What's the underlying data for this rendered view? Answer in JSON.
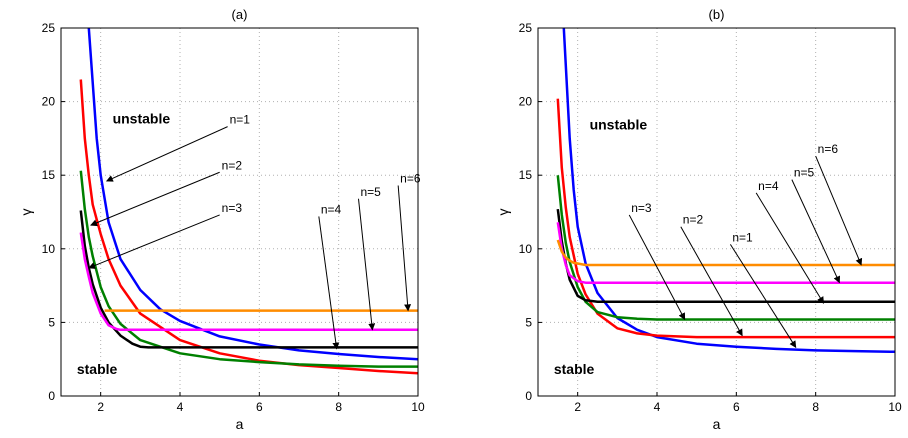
{
  "chart_data": [
    {
      "type": "line",
      "title": "(a)",
      "xlabel": "a",
      "ylabel": "γ",
      "xlim": [
        1,
        10
      ],
      "ylim": [
        0,
        25
      ],
      "xticks": [
        "2",
        "4",
        "6",
        "8",
        "10"
      ],
      "yticks": [
        "0",
        "5",
        "10",
        "15",
        "20",
        "25"
      ],
      "grid": true,
      "region_labels": [
        "unstable",
        "stable"
      ],
      "series": [
        {
          "name": "n=1",
          "color": "#0000ff",
          "x": [
            1.5,
            1.7,
            1.9,
            2.0,
            2.2,
            2.5,
            3,
            3.5,
            4,
            5,
            6,
            7,
            8,
            9,
            10
          ],
          "y": [
            40,
            25,
            17.5,
            15,
            11.8,
            9.3,
            7.2,
            5.9,
            5.1,
            4.05,
            3.5,
            3.1,
            2.85,
            2.65,
            2.5
          ]
        },
        {
          "name": "n=2",
          "color": "#ff0000",
          "x": [
            1.5,
            1.6,
            1.7,
            1.8,
            1.9,
            2.0,
            2.2,
            2.5,
            3,
            4,
            5,
            6,
            7,
            8,
            9,
            10
          ],
          "y": [
            21.5,
            17.5,
            15,
            13,
            12,
            11,
            9.3,
            7.5,
            5.6,
            3.8,
            2.9,
            2.4,
            2.1,
            1.9,
            1.7,
            1.55
          ]
        },
        {
          "name": "n=3",
          "color": "#008000",
          "x": [
            1.5,
            1.6,
            1.7,
            1.8,
            2.0,
            2.2,
            2.5,
            3,
            4,
            5,
            6,
            7,
            8,
            9,
            10
          ],
          "y": [
            15.3,
            12.7,
            10.8,
            9.5,
            7.4,
            6.1,
            4.9,
            3.8,
            2.9,
            2.5,
            2.3,
            2.15,
            2.05,
            2.0,
            2.0
          ]
        },
        {
          "name": "n=4",
          "color": "#000000",
          "x": [
            1.5,
            1.6,
            1.7,
            1.8,
            2.0,
            2.2,
            2.5,
            2.8,
            3.0,
            3.2,
            10
          ],
          "y": [
            12.6,
            10.2,
            8.7,
            7.6,
            6.0,
            5.0,
            4.1,
            3.55,
            3.35,
            3.3,
            3.3
          ]
        },
        {
          "name": "n=5",
          "color": "#ff00ff",
          "x": [
            1.5,
            1.6,
            1.7,
            1.8,
            2.0,
            2.2,
            2.4,
            2.5,
            10
          ],
          "y": [
            11.1,
            9.3,
            8.1,
            7.0,
            5.6,
            4.8,
            4.55,
            4.5,
            4.5
          ]
        },
        {
          "name": "n=6",
          "color": "#ff8c00",
          "x": [
            2.1,
            10
          ],
          "y": [
            5.8,
            5.8
          ]
        }
      ],
      "annotations": [
        {
          "text": "n=1",
          "label_at": [
            5.2,
            18.3
          ],
          "arrow_to": [
            2.15,
            14.6
          ]
        },
        {
          "text": "n=2",
          "label_at": [
            5.0,
            15.2
          ],
          "arrow_to": [
            1.75,
            11.6
          ]
        },
        {
          "text": "n=3",
          "label_at": [
            5.0,
            12.3
          ],
          "arrow_to": [
            1.7,
            8.7
          ]
        },
        {
          "text": "n=4",
          "label_at": [
            7.5,
            12.2
          ],
          "arrow_to": [
            7.95,
            3.2
          ]
        },
        {
          "text": "n=5",
          "label_at": [
            8.5,
            13.4
          ],
          "arrow_to": [
            8.85,
            4.5
          ]
        },
        {
          "text": "n=6",
          "label_at": [
            9.5,
            14.3
          ],
          "arrow_to": [
            9.75,
            5.8
          ]
        }
      ]
    },
    {
      "type": "line",
      "title": "(b)",
      "xlabel": "a",
      "ylabel": "γ",
      "xlim": [
        1,
        10
      ],
      "ylim": [
        0,
        25
      ],
      "xticks": [
        "2",
        "4",
        "6",
        "8",
        "10"
      ],
      "yticks": [
        "0",
        "5",
        "10",
        "15",
        "20",
        "25"
      ],
      "grid": true,
      "region_labels": [
        "unstable",
        "stable"
      ],
      "series": [
        {
          "name": "n=1",
          "color": "#0000ff",
          "x": [
            1.5,
            1.65,
            1.8,
            1.9,
            2.0,
            2.2,
            2.5,
            3,
            3.5,
            4,
            5,
            6,
            7,
            8,
            9,
            10
          ],
          "y": [
            40,
            25,
            17.5,
            14,
            11.5,
            9.0,
            7.0,
            5.3,
            4.5,
            4.0,
            3.55,
            3.35,
            3.2,
            3.1,
            3.05,
            3.0
          ]
        },
        {
          "name": "n=2",
          "color": "#ff0000",
          "x": [
            1.5,
            1.6,
            1.7,
            1.8,
            2.0,
            2.2,
            2.5,
            3,
            3.5,
            4,
            5,
            6,
            7,
            8,
            10
          ],
          "y": [
            20.2,
            15.5,
            12.8,
            10.8,
            8.3,
            6.9,
            5.6,
            4.6,
            4.25,
            4.1,
            4.0,
            4.0,
            4.0,
            4.0,
            4.0
          ]
        },
        {
          "name": "n=3",
          "color": "#008000",
          "x": [
            1.5,
            1.6,
            1.7,
            1.8,
            2.0,
            2.2,
            2.5,
            3,
            3.5,
            4,
            5,
            10
          ],
          "y": [
            15.0,
            12.3,
            10.4,
            9.1,
            7.4,
            6.4,
            5.7,
            5.35,
            5.25,
            5.2,
            5.2,
            5.2
          ]
        },
        {
          "name": "n=4",
          "color": "#000000",
          "x": [
            1.5,
            1.6,
            1.7,
            1.8,
            2.0,
            2.2,
            2.5,
            10
          ],
          "y": [
            12.7,
            10.5,
            9.0,
            7.9,
            6.8,
            6.5,
            6.4,
            6.4
          ]
        },
        {
          "name": "n=5",
          "color": "#ff00ff",
          "x": [
            1.5,
            1.6,
            1.7,
            1.8,
            2.0,
            2.2,
            10
          ],
          "y": [
            11.8,
            10.0,
            8.9,
            8.2,
            7.8,
            7.7,
            7.7
          ]
        },
        {
          "name": "n=6",
          "color": "#ff8c00",
          "x": [
            1.5,
            1.6,
            1.7,
            1.8,
            1.9,
            2.0,
            2.2,
            10
          ],
          "y": [
            10.6,
            9.8,
            9.4,
            9.2,
            9.05,
            9.0,
            8.9,
            8.9
          ]
        }
      ],
      "annotations": [
        {
          "text": "n=1",
          "label_at": [
            5.85,
            10.3
          ],
          "arrow_to": [
            7.5,
            3.3
          ]
        },
        {
          "text": "n=2",
          "label_at": [
            4.6,
            11.5
          ],
          "arrow_to": [
            6.15,
            4.1
          ]
        },
        {
          "text": "n=3",
          "label_at": [
            3.3,
            12.3
          ],
          "arrow_to": [
            4.7,
            5.2
          ]
        },
        {
          "text": "n=4",
          "label_at": [
            6.5,
            13.8
          ],
          "arrow_to": [
            8.2,
            6.3
          ]
        },
        {
          "text": "n=5",
          "label_at": [
            7.4,
            14.7
          ],
          "arrow_to": [
            8.6,
            7.7
          ]
        },
        {
          "text": "n=6",
          "label_at": [
            8.0,
            16.3
          ],
          "arrow_to": [
            9.15,
            8.9
          ]
        }
      ]
    }
  ]
}
